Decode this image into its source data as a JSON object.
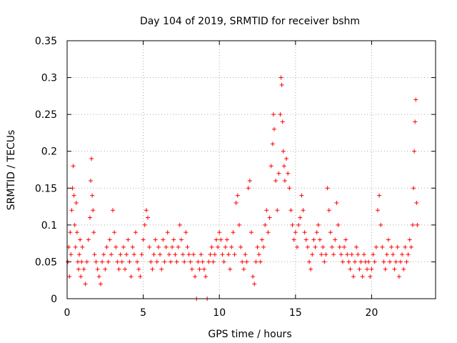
{
  "chart_data": {
    "type": "scatter",
    "title": "Day 104 of 2019, SRMTID for receiver bshm",
    "xlabel": "GPS time / hours",
    "ylabel": "SRMTID / TECUs",
    "xlim": [
      0,
      24.2
    ],
    "ylim": [
      0,
      0.35
    ],
    "xticks": [
      0,
      5,
      10,
      15,
      20
    ],
    "xtick_labels": [
      "0",
      "5",
      "10",
      "15",
      "20"
    ],
    "yticks": [
      0,
      0.05,
      0.1,
      0.15,
      0.2,
      0.25,
      0.3,
      0.35
    ],
    "ytick_labels": [
      "0",
      "0.05",
      "0.1",
      "0.15",
      "0.2",
      "0.25",
      "0.3",
      "0.35"
    ],
    "grid": true,
    "marker": "+",
    "marker_color": "#ff0000",
    "series": [
      {
        "name": "SRMTID",
        "points": [
          [
            0.05,
            0.05
          ],
          [
            0.1,
            0.07
          ],
          [
            0.15,
            0.03
          ],
          [
            0.2,
            0.09
          ],
          [
            0.25,
            0.06
          ],
          [
            0.3,
            0.12
          ],
          [
            0.35,
            0.15
          ],
          [
            0.4,
            0.18
          ],
          [
            0.45,
            0.14
          ],
          [
            0.5,
            0.1
          ],
          [
            0.55,
            0.07
          ],
          [
            0.6,
            0.13
          ],
          [
            0.65,
            0.09
          ],
          [
            0.7,
            0.05
          ],
          [
            0.75,
            0.04
          ],
          [
            0.8,
            0.06
          ],
          [
            0.85,
            0.08
          ],
          [
            0.9,
            0.03
          ],
          [
            0.95,
            0.05
          ],
          [
            1.0,
            0.07
          ],
          [
            1.1,
            0.04
          ],
          [
            1.2,
            0.02
          ],
          [
            1.3,
            0.05
          ],
          [
            1.4,
            0.08
          ],
          [
            1.5,
            0.11
          ],
          [
            1.55,
            0.16
          ],
          [
            1.6,
            0.19
          ],
          [
            1.65,
            0.14
          ],
          [
            1.7,
            0.12
          ],
          [
            1.75,
            0.09
          ],
          [
            1.8,
            0.06
          ],
          [
            1.9,
            0.05
          ],
          [
            2.0,
            0.04
          ],
          [
            2.1,
            0.03
          ],
          [
            2.2,
            0.02
          ],
          [
            2.3,
            0.05
          ],
          [
            2.4,
            0.06
          ],
          [
            2.5,
            0.04
          ],
          [
            2.6,
            0.07
          ],
          [
            2.7,
            0.05
          ],
          [
            2.8,
            0.08
          ],
          [
            2.9,
            0.06
          ],
          [
            3.0,
            0.12
          ],
          [
            3.1,
            0.09
          ],
          [
            3.2,
            0.07
          ],
          [
            3.3,
            0.05
          ],
          [
            3.4,
            0.04
          ],
          [
            3.5,
            0.06
          ],
          [
            3.6,
            0.05
          ],
          [
            3.7,
            0.07
          ],
          [
            3.8,
            0.04
          ],
          [
            3.9,
            0.06
          ],
          [
            4.0,
            0.08
          ],
          [
            4.1,
            0.05
          ],
          [
            4.2,
            0.03
          ],
          [
            4.3,
            0.07
          ],
          [
            4.4,
            0.06
          ],
          [
            4.5,
            0.09
          ],
          [
            4.6,
            0.05
          ],
          [
            4.7,
            0.04
          ],
          [
            4.8,
            0.03
          ],
          [
            4.9,
            0.06
          ],
          [
            5.0,
            0.08
          ],
          [
            5.1,
            0.1
          ],
          [
            5.2,
            0.12
          ],
          [
            5.3,
            0.11
          ],
          [
            5.4,
            0.07
          ],
          [
            5.5,
            0.05
          ],
          [
            5.6,
            0.04
          ],
          [
            5.7,
            0.06
          ],
          [
            5.8,
            0.08
          ],
          [
            5.9,
            0.05
          ],
          [
            6.0,
            0.07
          ],
          [
            6.1,
            0.06
          ],
          [
            6.2,
            0.04
          ],
          [
            6.3,
            0.08
          ],
          [
            6.4,
            0.05
          ],
          [
            6.5,
            0.07
          ],
          [
            6.6,
            0.09
          ],
          [
            6.7,
            0.06
          ],
          [
            6.8,
            0.05
          ],
          [
            6.9,
            0.07
          ],
          [
            7.0,
            0.08
          ],
          [
            7.1,
            0.06
          ],
          [
            7.2,
            0.05
          ],
          [
            7.3,
            0.07
          ],
          [
            7.4,
            0.1
          ],
          [
            7.5,
            0.08
          ],
          [
            7.6,
            0.06
          ],
          [
            7.7,
            0.05
          ],
          [
            7.8,
            0.09
          ],
          [
            7.9,
            0.07
          ],
          [
            8.0,
            0.06
          ],
          [
            8.1,
            0.05
          ],
          [
            8.2,
            0.04
          ],
          [
            8.3,
            0.06
          ],
          [
            8.4,
            0.03
          ],
          [
            8.5,
            0.0
          ],
          [
            8.6,
            0.05
          ],
          [
            8.7,
            0.04
          ],
          [
            8.8,
            0.06
          ],
          [
            8.9,
            0.05
          ],
          [
            9.0,
            0.04
          ],
          [
            9.1,
            0.03
          ],
          [
            9.2,
            0.0
          ],
          [
            9.3,
            0.05
          ],
          [
            9.4,
            0.06
          ],
          [
            9.5,
            0.07
          ],
          [
            9.6,
            0.05
          ],
          [
            9.7,
            0.06
          ],
          [
            9.8,
            0.08
          ],
          [
            9.9,
            0.07
          ],
          [
            10.0,
            0.09
          ],
          [
            10.1,
            0.08
          ],
          [
            10.2,
            0.06
          ],
          [
            10.3,
            0.05
          ],
          [
            10.4,
            0.07
          ],
          [
            10.5,
            0.08
          ],
          [
            10.6,
            0.06
          ],
          [
            10.7,
            0.04
          ],
          [
            10.8,
            0.07
          ],
          [
            10.9,
            0.09
          ],
          [
            11.0,
            0.06
          ],
          [
            11.1,
            0.13
          ],
          [
            11.2,
            0.14
          ],
          [
            11.3,
            0.1
          ],
          [
            11.4,
            0.07
          ],
          [
            11.5,
            0.05
          ],
          [
            11.6,
            0.04
          ],
          [
            11.7,
            0.06
          ],
          [
            11.8,
            0.05
          ],
          [
            11.9,
            0.15
          ],
          [
            12.0,
            0.16
          ],
          [
            12.1,
            0.09
          ],
          [
            12.2,
            0.03
          ],
          [
            12.3,
            0.02
          ],
          [
            12.4,
            0.05
          ],
          [
            12.5,
            0.07
          ],
          [
            12.6,
            0.06
          ],
          [
            12.7,
            0.05
          ],
          [
            12.8,
            0.08
          ],
          [
            12.9,
            0.07
          ],
          [
            13.0,
            0.1
          ],
          [
            13.1,
            0.12
          ],
          [
            13.2,
            0.09
          ],
          [
            13.3,
            0.11
          ],
          [
            13.4,
            0.18
          ],
          [
            13.5,
            0.21
          ],
          [
            13.55,
            0.25
          ],
          [
            13.6,
            0.23
          ],
          [
            13.7,
            0.16
          ],
          [
            13.8,
            0.12
          ],
          [
            13.9,
            0.17
          ],
          [
            14.0,
            0.25
          ],
          [
            14.05,
            0.3
          ],
          [
            14.1,
            0.29
          ],
          [
            14.15,
            0.24
          ],
          [
            14.2,
            0.2
          ],
          [
            14.25,
            0.18
          ],
          [
            14.3,
            0.16
          ],
          [
            14.4,
            0.19
          ],
          [
            14.5,
            0.17
          ],
          [
            14.6,
            0.15
          ],
          [
            14.7,
            0.12
          ],
          [
            14.8,
            0.1
          ],
          [
            14.9,
            0.08
          ],
          [
            15.0,
            0.09
          ],
          [
            15.1,
            0.07
          ],
          [
            15.2,
            0.1
          ],
          [
            15.3,
            0.11
          ],
          [
            15.4,
            0.14
          ],
          [
            15.5,
            0.12
          ],
          [
            15.6,
            0.09
          ],
          [
            15.7,
            0.08
          ],
          [
            15.8,
            0.07
          ],
          [
            15.9,
            0.05
          ],
          [
            16.0,
            0.04
          ],
          [
            16.1,
            0.06
          ],
          [
            16.2,
            0.08
          ],
          [
            16.3,
            0.07
          ],
          [
            16.4,
            0.09
          ],
          [
            16.5,
            0.1
          ],
          [
            16.6,
            0.08
          ],
          [
            16.7,
            0.06
          ],
          [
            16.8,
            0.07
          ],
          [
            16.9,
            0.05
          ],
          [
            17.0,
            0.06
          ],
          [
            17.1,
            0.15
          ],
          [
            17.2,
            0.12
          ],
          [
            17.3,
            0.09
          ],
          [
            17.4,
            0.07
          ],
          [
            17.5,
            0.06
          ],
          [
            17.6,
            0.08
          ],
          [
            17.7,
            0.13
          ],
          [
            17.8,
            0.1
          ],
          [
            17.9,
            0.07
          ],
          [
            18.0,
            0.06
          ],
          [
            18.1,
            0.05
          ],
          [
            18.2,
            0.07
          ],
          [
            18.3,
            0.08
          ],
          [
            18.4,
            0.06
          ],
          [
            18.5,
            0.05
          ],
          [
            18.6,
            0.04
          ],
          [
            18.7,
            0.06
          ],
          [
            18.8,
            0.03
          ],
          [
            18.9,
            0.05
          ],
          [
            19.0,
            0.07
          ],
          [
            19.1,
            0.06
          ],
          [
            19.2,
            0.04
          ],
          [
            19.3,
            0.05
          ],
          [
            19.4,
            0.03
          ],
          [
            19.5,
            0.06
          ],
          [
            19.6,
            0.05
          ],
          [
            19.7,
            0.04
          ],
          [
            19.8,
            0.05
          ],
          [
            19.9,
            0.03
          ],
          [
            20.0,
            0.04
          ],
          [
            20.1,
            0.06
          ],
          [
            20.2,
            0.05
          ],
          [
            20.3,
            0.07
          ],
          [
            20.4,
            0.12
          ],
          [
            20.5,
            0.14
          ],
          [
            20.6,
            0.1
          ],
          [
            20.7,
            0.07
          ],
          [
            20.8,
            0.05
          ],
          [
            20.9,
            0.04
          ],
          [
            21.0,
            0.06
          ],
          [
            21.1,
            0.08
          ],
          [
            21.2,
            0.05
          ],
          [
            21.3,
            0.07
          ],
          [
            21.4,
            0.06
          ],
          [
            21.5,
            0.04
          ],
          [
            21.6,
            0.05
          ],
          [
            21.7,
            0.07
          ],
          [
            21.8,
            0.03
          ],
          [
            21.9,
            0.05
          ],
          [
            22.0,
            0.06
          ],
          [
            22.1,
            0.04
          ],
          [
            22.2,
            0.07
          ],
          [
            22.3,
            0.05
          ],
          [
            22.4,
            0.06
          ],
          [
            22.5,
            0.08
          ],
          [
            22.6,
            0.07
          ],
          [
            22.7,
            0.1
          ],
          [
            22.75,
            0.15
          ],
          [
            22.8,
            0.2
          ],
          [
            22.85,
            0.24
          ],
          [
            22.9,
            0.27
          ],
          [
            22.95,
            0.13
          ],
          [
            23.0,
            0.1
          ]
        ]
      }
    ]
  }
}
